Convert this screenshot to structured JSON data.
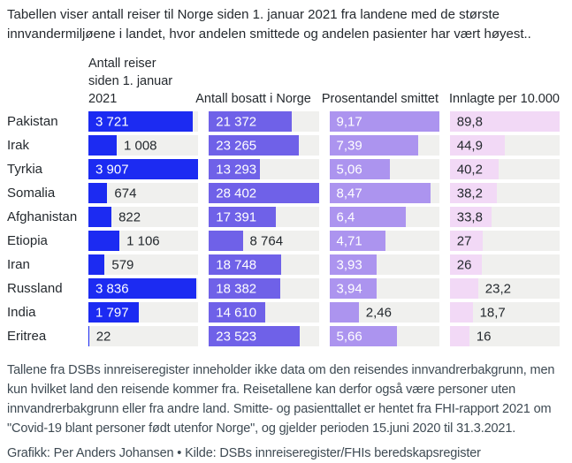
{
  "title": "Tabellen viser antall reiser til Norge siden 1. januar 2021 fra landene med de største innvandermiljøene i landet, hvor andelen smittede og andelen pasienter har vært høyest..",
  "chart_data": {
    "type": "bar",
    "orientation": "horizontal",
    "grid": false,
    "track_color": "#f0f0ee",
    "columns": [
      {
        "label": "Antall reiser siden 1. januar 2021",
        "max": 3907,
        "bar_color": "#1c2bf2",
        "text_color_inside": "#ffffff"
      },
      {
        "label": "Antall bosatt i Norge",
        "max": 28402,
        "bar_color": "#6f61e8",
        "text_color_inside": "#ffffff"
      },
      {
        "label": "Prosentandel smittet",
        "max": 9.17,
        "bar_color": "#ac94ef",
        "text_color_inside": "#ffffff"
      },
      {
        "label": "Innlagte per 10.000",
        "max": 89.8,
        "bar_color": "#f2d9f6",
        "text_color_inside": "#24292e"
      }
    ],
    "rows": [
      {
        "country": "Pakistan",
        "values": [
          3721,
          21372,
          9.17,
          89.8
        ],
        "labels": [
          "3 721",
          "21 372",
          "9,17",
          "89,8"
        ]
      },
      {
        "country": "Irak",
        "values": [
          1008,
          23265,
          7.39,
          44.9
        ],
        "labels": [
          "1 008",
          "23 265",
          "7,39",
          "44,9"
        ]
      },
      {
        "country": "Tyrkia",
        "values": [
          3907,
          13293,
          5.06,
          40.2
        ],
        "labels": [
          "3 907",
          "13 293",
          "5,06",
          "40,2"
        ]
      },
      {
        "country": "Somalia",
        "values": [
          674,
          28402,
          8.47,
          38.2
        ],
        "labels": [
          "674",
          "28 402",
          "8,47",
          "38,2"
        ]
      },
      {
        "country": "Afghanistan",
        "values": [
          822,
          17391,
          6.4,
          33.8
        ],
        "labels": [
          "822",
          "17 391",
          "6,4",
          "33,8"
        ]
      },
      {
        "country": "Etiopia",
        "values": [
          1106,
          8764,
          4.71,
          27
        ],
        "labels": [
          "1 106",
          "8 764",
          "4,71",
          "27"
        ]
      },
      {
        "country": "Iran",
        "values": [
          579,
          18748,
          3.93,
          26
        ],
        "labels": [
          "579",
          "18 748",
          "3,93",
          "26"
        ]
      },
      {
        "country": "Russland",
        "values": [
          3836,
          18382,
          3.94,
          23.2
        ],
        "labels": [
          "3 836",
          "18 382",
          "3,94",
          "23,2"
        ]
      },
      {
        "country": "India",
        "values": [
          1797,
          14610,
          2.46,
          18.7
        ],
        "labels": [
          "1 797",
          "14 610",
          "2,46",
          "18,7"
        ]
      },
      {
        "country": "Eritrea",
        "values": [
          22,
          23523,
          5.66,
          16
        ],
        "labels": [
          "22",
          "23 523",
          "5,66",
          "16"
        ]
      }
    ]
  },
  "footnote": "Tallene fra DSBs innreiseregister inneholder ikke data om den reisendes innvandrerbakgrunn, men kun hvilket land den reisende kommer fra. Reisetallene kan derfor også være personer uten innvandrerbakgrunn eller fra andre land. Smitte- og pasienttallet er hentet fra FHI-rapport 2021 om \"Covid-19 blant personer født utenfor Norge\", og gjelder perioden 15.juni 2020 til 31.3.2021.",
  "credit": "Grafikk: Per Anders Johansen • Kilde: DSBs innreiseregister/FHIs beredskapsregister",
  "colors": {
    "background": "#ffffff",
    "title_text": "#24292e",
    "footnote_text": "#3e4a53",
    "outside_label_text": "#24292e"
  }
}
